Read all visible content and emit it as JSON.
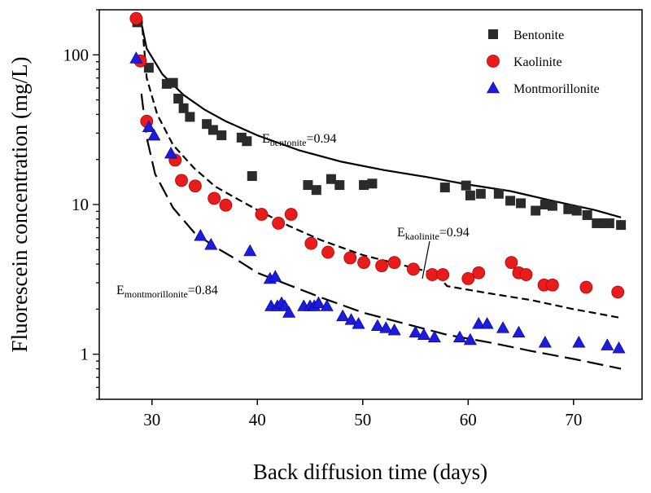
{
  "chart_data": {
    "type": "scatter",
    "title": "",
    "xlabel": "Back diffusion time (days)",
    "ylabel": "Fluorescein concentration (mg/L)",
    "xlim": [
      25,
      76.5
    ],
    "ylim": [
      0.5,
      200
    ],
    "yscale": "log",
    "grid": false,
    "legend_position": "top-right",
    "x_ticks": [
      30,
      40,
      50,
      60,
      70
    ],
    "x_tick_labels": [
      "30",
      "40",
      "50",
      "60",
      "70"
    ],
    "y_ticks": [
      1,
      10,
      100
    ],
    "y_tick_labels": [
      "1",
      "10",
      "100"
    ],
    "series": [
      {
        "name": "Bentonite",
        "marker": "square",
        "color": "#2b2b2b",
        "points": [
          [
            28.6,
            165
          ],
          [
            29.7,
            82
          ],
          [
            31.4,
            64
          ],
          [
            32,
            65
          ],
          [
            32.5,
            51
          ],
          [
            33,
            44
          ],
          [
            33.6,
            38.5
          ],
          [
            35.2,
            34.5
          ],
          [
            35.8,
            31.5
          ],
          [
            36.6,
            29
          ],
          [
            38.5,
            28
          ],
          [
            39,
            26.5
          ],
          [
            39.5,
            15.5
          ],
          [
            44.8,
            13.5
          ],
          [
            45.6,
            12.5
          ],
          [
            47,
            14.8
          ],
          [
            47.8,
            13.5
          ],
          [
            50.1,
            13.5
          ],
          [
            50.9,
            13.8
          ],
          [
            57.8,
            13
          ],
          [
            59.8,
            13.4
          ],
          [
            60.2,
            11.5
          ],
          [
            61.2,
            11.8
          ],
          [
            62.9,
            11.8
          ],
          [
            64,
            10.6
          ],
          [
            65,
            10.2
          ],
          [
            66.4,
            9.1
          ],
          [
            67.3,
            10
          ],
          [
            68,
            9.8
          ],
          [
            69.5,
            9.3
          ],
          [
            70.3,
            9.1
          ],
          [
            71.3,
            8.5
          ],
          [
            72.2,
            7.5
          ],
          [
            72.8,
            7.5
          ],
          [
            73.4,
            7.5
          ],
          [
            74.5,
            7.3
          ]
        ]
      },
      {
        "name": "Kaolinite",
        "marker": "circle",
        "color": "#e81c1c",
        "points": [
          [
            28.5,
            175
          ],
          [
            28.9,
            91
          ],
          [
            29.5,
            36
          ],
          [
            32.2,
            19.8
          ],
          [
            32.8,
            14.5
          ],
          [
            34.1,
            13.3
          ],
          [
            35.9,
            11
          ],
          [
            37,
            9.9
          ],
          [
            40.4,
            8.6
          ],
          [
            42,
            7.5
          ],
          [
            43.2,
            8.6
          ],
          [
            45.1,
            5.5
          ],
          [
            46.7,
            4.8
          ],
          [
            48.8,
            4.4
          ],
          [
            50.1,
            4.1
          ],
          [
            51.8,
            3.9
          ],
          [
            53,
            4.1
          ],
          [
            54.8,
            3.7
          ],
          [
            56.6,
            3.4
          ],
          [
            57.6,
            3.4
          ],
          [
            60,
            3.2
          ],
          [
            61,
            3.5
          ],
          [
            64.1,
            4.1
          ],
          [
            64.8,
            3.5
          ],
          [
            65.5,
            3.4
          ],
          [
            67.2,
            2.9
          ],
          [
            68,
            2.9
          ],
          [
            71.2,
            2.8
          ],
          [
            74.2,
            2.6
          ]
        ]
      },
      {
        "name": "Montmorillonite",
        "marker": "triangle",
        "color": "#1c1cdd",
        "points": [
          [
            28.5,
            95
          ],
          [
            29.7,
            33
          ],
          [
            30.2,
            29
          ],
          [
            31.8,
            22
          ],
          [
            34.6,
            6.2
          ],
          [
            35.6,
            5.4
          ],
          [
            39.3,
            4.9
          ],
          [
            41.2,
            3.2
          ],
          [
            41.7,
            3.3
          ],
          [
            41.3,
            2.1
          ],
          [
            41.9,
            2.1
          ],
          [
            42.3,
            2.2
          ],
          [
            42.6,
            2.1
          ],
          [
            43,
            1.9
          ],
          [
            44.4,
            2.1
          ],
          [
            45,
            2.1
          ],
          [
            45.4,
            2.1
          ],
          [
            45.8,
            2.2
          ],
          [
            46.6,
            2.1
          ],
          [
            48.1,
            1.8
          ],
          [
            48.9,
            1.7
          ],
          [
            49.6,
            1.6
          ],
          [
            51.4,
            1.55
          ],
          [
            52.2,
            1.5
          ],
          [
            53,
            1.45
          ],
          [
            55,
            1.4
          ],
          [
            55.8,
            1.35
          ],
          [
            56.8,
            1.3
          ],
          [
            59.2,
            1.3
          ],
          [
            60.2,
            1.25
          ],
          [
            61,
            1.6
          ],
          [
            61.8,
            1.6
          ],
          [
            63.3,
            1.5
          ],
          [
            64.8,
            1.4
          ],
          [
            67.3,
            1.2
          ],
          [
            70.5,
            1.2
          ],
          [
            73.2,
            1.15
          ],
          [
            74.3,
            1.1
          ]
        ]
      }
    ],
    "fit_lines": [
      {
        "name": "Bentonite fit",
        "style": "solid",
        "points": [
          [
            28.8,
            190
          ],
          [
            29.5,
            110
          ],
          [
            31,
            74
          ],
          [
            33,
            54
          ],
          [
            35,
            43
          ],
          [
            37,
            36
          ],
          [
            40,
            29
          ],
          [
            44,
            23
          ],
          [
            48,
            19.3
          ],
          [
            52,
            17
          ],
          [
            56,
            15.3
          ],
          [
            60,
            13.6
          ],
          [
            64,
            12.3
          ],
          [
            68,
            10.6
          ],
          [
            72,
            9.2
          ],
          [
            74.5,
            8.2
          ]
        ]
      },
      {
        "name": "Kaolinite fit",
        "style": "dashed",
        "points": [
          [
            29,
            180
          ],
          [
            29.5,
            70
          ],
          [
            30.5,
            40
          ],
          [
            32,
            25
          ],
          [
            34,
            17.5
          ],
          [
            36,
            13.2
          ],
          [
            38,
            11
          ],
          [
            40,
            9.2
          ],
          [
            43,
            7.2
          ],
          [
            46,
            5.8
          ],
          [
            50,
            4.6
          ],
          [
            54,
            3.9
          ],
          [
            57,
            3.45
          ],
          [
            58,
            2.85
          ],
          [
            62,
            2.55
          ],
          [
            66,
            2.3
          ],
          [
            70,
            2
          ],
          [
            74.5,
            1.75
          ]
        ]
      },
      {
        "name": "Montmorillonite fit",
        "style": "long-dashed",
        "points": [
          [
            29,
            55
          ],
          [
            29.5,
            28
          ],
          [
            30.3,
            16
          ],
          [
            32,
            9.5
          ],
          [
            34,
            6.5
          ],
          [
            36,
            5.2
          ],
          [
            38,
            4.3
          ],
          [
            40,
            3.5
          ],
          [
            43,
            2.9
          ],
          [
            46,
            2.4
          ],
          [
            50,
            1.9
          ],
          [
            54,
            1.6
          ],
          [
            58,
            1.35
          ],
          [
            62,
            1.2
          ],
          [
            66,
            1.05
          ],
          [
            70,
            0.93
          ],
          [
            74.5,
            0.8
          ]
        ]
      }
    ],
    "annotations": [
      {
        "name": "annotation-bentonite",
        "main": "E",
        "sub": "bentonite",
        "value": "=0.94"
      },
      {
        "name": "annotation-kaolinite",
        "main": "E",
        "sub": "kaolinite",
        "value": "=0.94"
      },
      {
        "name": "annotation-montmorillonite",
        "main": "E",
        "sub": "montmorillonite",
        "value": "=0.84"
      }
    ]
  }
}
